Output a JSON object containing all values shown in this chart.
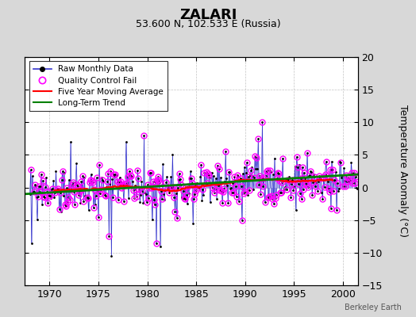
{
  "title": "ZALARI",
  "subtitle": "53.600 N, 102.533 E (Russia)",
  "ylabel": "Temperature Anomaly (°C)",
  "watermark": "Berkeley Earth",
  "xlim": [
    1967.5,
    2001.5
  ],
  "ylim": [
    -15,
    20
  ],
  "yticks": [
    -15,
    -10,
    -5,
    0,
    5,
    10,
    15,
    20
  ],
  "xticks": [
    1970,
    1975,
    1980,
    1985,
    1990,
    1995,
    2000
  ],
  "bg_color": "#d8d8d8",
  "plot_bg_color": "#ffffff",
  "trend_x": [
    1967.5,
    2001.5
  ],
  "trend_y": [
    -1.0,
    2.0
  ],
  "ma_ylim_clip": 3.0
}
